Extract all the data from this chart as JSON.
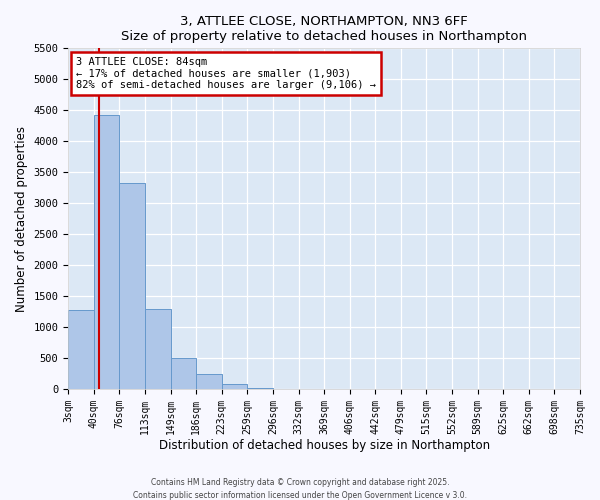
{
  "title": "3, ATTLEE CLOSE, NORTHAMPTON, NN3 6FF",
  "subtitle": "Size of property relative to detached houses in Northampton",
  "xlabel": "Distribution of detached houses by size in Northampton",
  "ylabel": "Number of detached properties",
  "bar_values": [
    1270,
    4430,
    3320,
    1290,
    500,
    240,
    80,
    20,
    5,
    0,
    0,
    0,
    0,
    0,
    0,
    0,
    0,
    0,
    0,
    0
  ],
  "bin_labels": [
    "3sqm",
    "40sqm",
    "76sqm",
    "113sqm",
    "149sqm",
    "186sqm",
    "223sqm",
    "259sqm",
    "296sqm",
    "332sqm",
    "369sqm",
    "406sqm",
    "442sqm",
    "479sqm",
    "515sqm",
    "552sqm",
    "589sqm",
    "625sqm",
    "662sqm",
    "698sqm",
    "735sqm"
  ],
  "bar_color": "#aec6e8",
  "bar_edge_color": "#6699cc",
  "vline_color": "#cc0000",
  "annotation_title": "3 ATTLEE CLOSE: 84sqm",
  "annotation_line1": "← 17% of detached houses are smaller (1,903)",
  "annotation_line2": "82% of semi-detached houses are larger (9,106) →",
  "annotation_box_color": "#cc0000",
  "ylim": [
    0,
    5500
  ],
  "yticks": [
    0,
    500,
    1000,
    1500,
    2000,
    2500,
    3000,
    3500,
    4000,
    4500,
    5000,
    5500
  ],
  "footer1": "Contains HM Land Registry data © Crown copyright and database right 2025.",
  "footer2": "Contains public sector information licensed under the Open Government Licence v 3.0.",
  "plot_bg_color": "#f8f8ff",
  "axes_bg_color": "#dce8f5"
}
